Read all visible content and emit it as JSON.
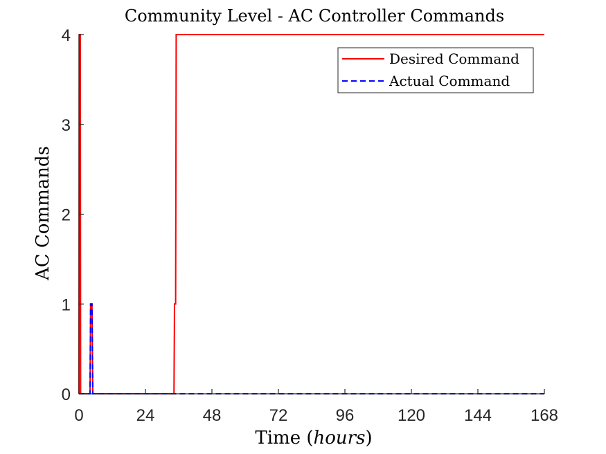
{
  "chart_data": {
    "type": "line",
    "title": "Community Level - AC Controller Commands",
    "xlabel": "Time",
    "xlabel_unit": "hours",
    "ylabel": "AC Commands",
    "xlim": [
      0,
      168
    ],
    "ylim": [
      0,
      4
    ],
    "xticks": [
      0,
      24,
      48,
      72,
      96,
      120,
      144,
      168
    ],
    "yticks": [
      0,
      1,
      2,
      3,
      4
    ],
    "grid": false,
    "legend_position": "top-right",
    "series": [
      {
        "name": "Desired Command",
        "color": "#ff0000",
        "line_style": "solid",
        "x": [
          0,
          0.1,
          0.5,
          0.6,
          4.0,
          4.2,
          4.7,
          5.0,
          34.3,
          34.5,
          34.9,
          35.1,
          168
        ],
        "y": [
          0,
          4,
          4,
          0,
          0,
          1,
          1,
          0,
          0,
          1,
          1,
          4,
          4
        ]
      },
      {
        "name": "Actual Command",
        "color": "#0000ff",
        "line_style": "dashed",
        "x": [
          0,
          4.0,
          4.2,
          4.7,
          5.0,
          168
        ],
        "y": [
          0,
          0,
          1,
          1,
          0,
          0
        ]
      }
    ]
  }
}
